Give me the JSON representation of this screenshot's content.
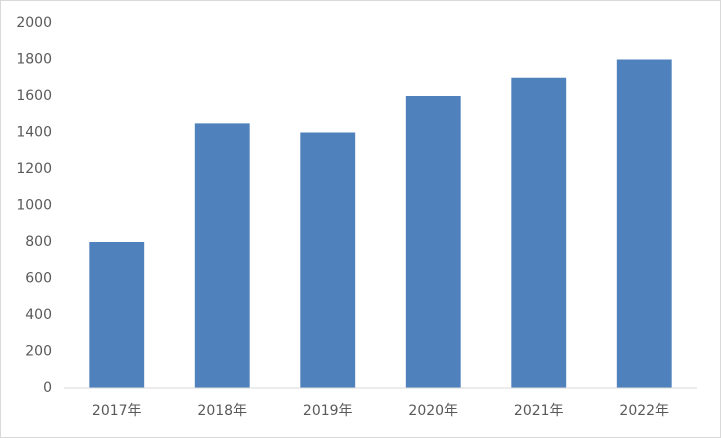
{
  "chart_data": {
    "type": "bar",
    "categories": [
      "2017年",
      "2018年",
      "2019年",
      "2020年",
      "2021年",
      "2022年"
    ],
    "values": [
      800,
      1450,
      1400,
      1600,
      1700,
      1800
    ],
    "color": "#4f81bd",
    "ylim": [
      0,
      2000
    ],
    "yticks": [
      0,
      200,
      400,
      600,
      800,
      1000,
      1200,
      1400,
      1600,
      1800,
      2000
    ],
    "grid": false
  }
}
